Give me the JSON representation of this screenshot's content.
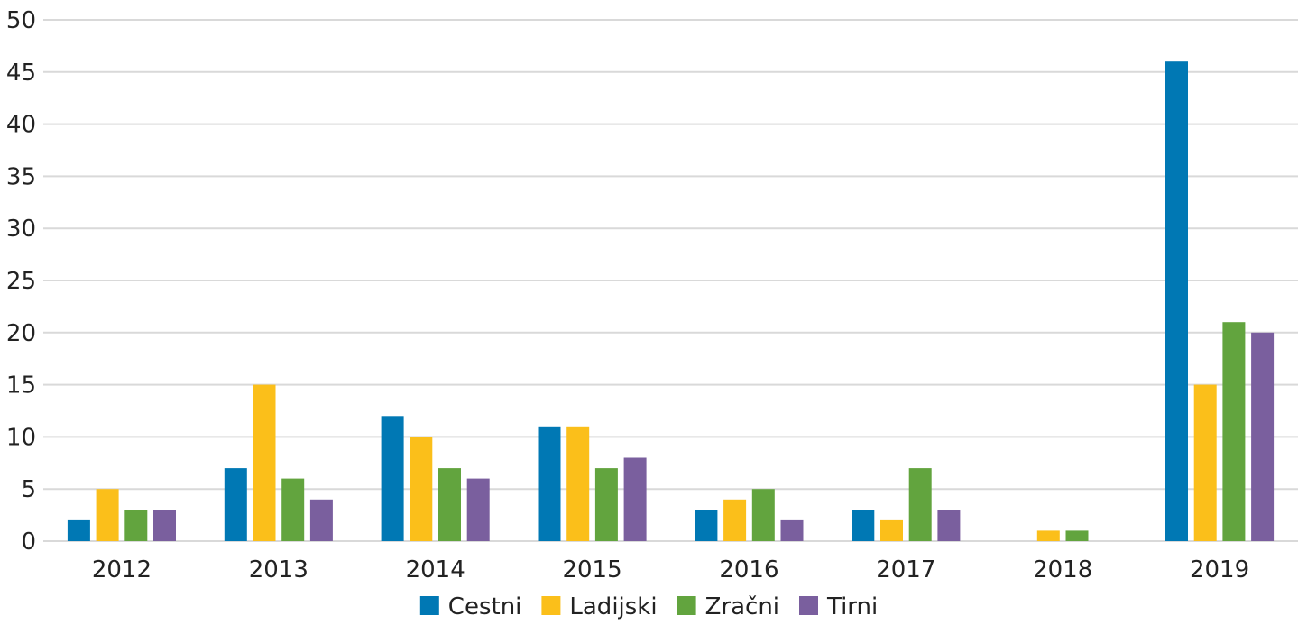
{
  "chart_data": {
    "type": "bar",
    "title": "",
    "xlabel": "",
    "ylabel": "",
    "categories": [
      "2012",
      "2013",
      "2014",
      "2015",
      "2016",
      "2017",
      "2018",
      "2019"
    ],
    "ylim": [
      0,
      50
    ],
    "yticks": [
      "0",
      "5",
      "10",
      "15",
      "20",
      "25",
      "30",
      "35",
      "40",
      "45",
      "50"
    ],
    "grid": true,
    "legend_position": "bottom",
    "series": [
      {
        "name": "Cestni",
        "color": "#0078b4",
        "values": [
          2,
          7,
          12,
          11,
          3,
          3,
          0,
          46
        ]
      },
      {
        "name": "Ladijski",
        "color": "#fbbf1a",
        "values": [
          5,
          15,
          10,
          11,
          4,
          2,
          1,
          15
        ]
      },
      {
        "name": "Zračni",
        "color": "#62a43e",
        "values": [
          3,
          6,
          7,
          7,
          5,
          7,
          1,
          21
        ]
      },
      {
        "name": "Tirni",
        "color": "#7a5f9e",
        "values": [
          3,
          4,
          6,
          8,
          2,
          3,
          0,
          20
        ]
      }
    ]
  }
}
